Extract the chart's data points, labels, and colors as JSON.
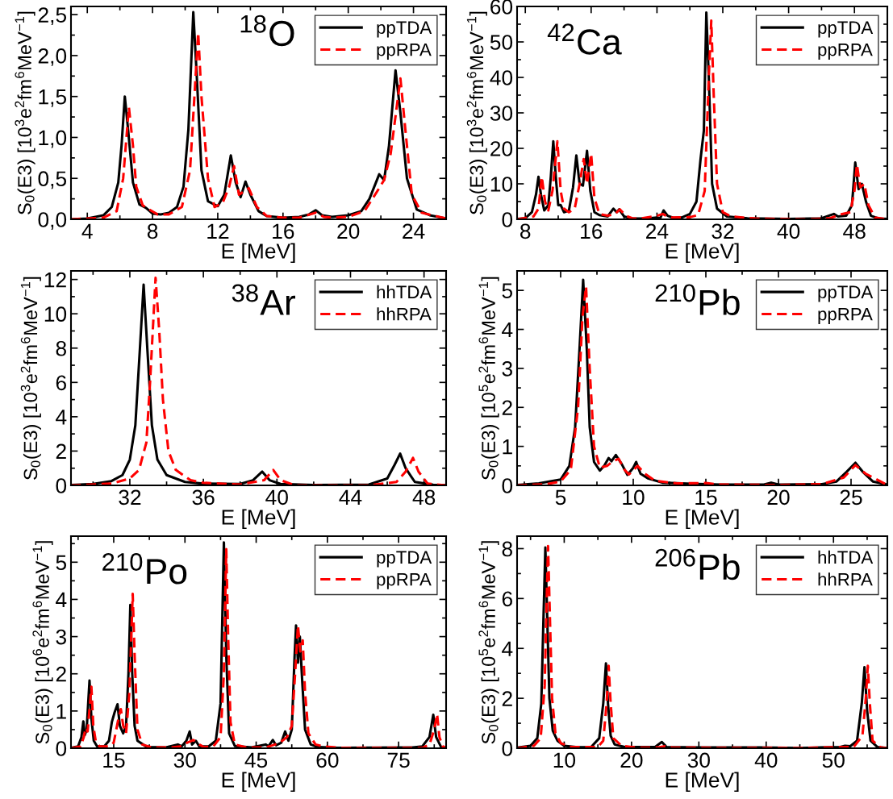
{
  "chart_data": [
    {
      "type": "line",
      "xlabel": "E [MeV]",
      "ylabel": "S$_{0}$(E3) [10$^{3}$e$^{2}$fm$^{6}$MeV$^{−1}$]",
      "annotations": [
        "$^{18}$O"
      ],
      "legend": "top right",
      "xlim": [
        3,
        26
      ],
      "ylim": [
        0,
        2.6
      ],
      "xticks": [
        4,
        8,
        12,
        16,
        20,
        24
      ],
      "yticks": [
        {
          "value": 0,
          "label": "0,0"
        },
        {
          "value": 0.5,
          "label": "0,5"
        },
        {
          "value": 1.0,
          "label": "1,0"
        },
        {
          "value": 1.5,
          "label": "1,5"
        },
        {
          "value": 2.0,
          "label": "2,0"
        },
        {
          "value": 2.5,
          "label": "2,5"
        }
      ],
      "series": [
        {
          "name": "ppTDA",
          "color": "#000000",
          "line_style": "solid",
          "x": [
            3,
            4,
            5,
            5.5,
            5.9,
            6.1,
            6.3,
            6.5,
            6.8,
            7.2,
            7.6,
            8,
            8.5,
            9,
            9.5,
            9.9,
            10.2,
            10.5,
            10.7,
            11.0,
            11.4,
            12.0,
            12.4,
            12.8,
            13.1,
            13.4,
            13.7,
            14.0,
            14.5,
            15,
            16,
            17,
            17.6,
            18.0,
            18.4,
            19,
            20,
            20.8,
            21.3,
            21.9,
            22.2,
            22.5,
            22.9,
            23.2,
            23.6,
            24.2,
            25,
            26
          ],
          "values": [
            0.0,
            0.01,
            0.05,
            0.15,
            0.45,
            0.9,
            1.5,
            1.1,
            0.45,
            0.18,
            0.14,
            0.07,
            0.06,
            0.08,
            0.15,
            0.4,
            1.1,
            2.53,
            1.8,
            0.6,
            0.22,
            0.16,
            0.3,
            0.78,
            0.45,
            0.27,
            0.46,
            0.3,
            0.1,
            0.04,
            0.02,
            0.03,
            0.06,
            0.11,
            0.05,
            0.03,
            0.05,
            0.1,
            0.25,
            0.55,
            0.48,
            0.9,
            1.82,
            1.3,
            0.5,
            0.12,
            0.05,
            0.01
          ]
        },
        {
          "name": "ppRPA",
          "color": "#ff0000",
          "line_style": "dashed",
          "x": [
            3,
            5,
            5.8,
            6.2,
            6.55,
            6.8,
            7.0,
            7.4,
            7.8,
            8.3,
            9,
            9.8,
            10.3,
            10.8,
            11.0,
            11.4,
            11.8,
            12.3,
            12.7,
            13.0,
            13.3,
            13.9,
            14.4,
            15,
            16,
            17,
            18.0,
            18.5,
            19,
            20,
            21,
            21.8,
            22.2,
            22.6,
            23.2,
            23.5,
            23.9,
            24.5,
            26
          ],
          "values": [
            0.0,
            0.02,
            0.1,
            0.5,
            1.37,
            0.9,
            0.4,
            0.17,
            0.12,
            0.06,
            0.06,
            0.15,
            0.6,
            2.28,
            1.5,
            0.5,
            0.15,
            0.2,
            0.4,
            0.65,
            0.3,
            0.38,
            0.15,
            0.04,
            0.02,
            0.02,
            0.08,
            0.03,
            0.02,
            0.03,
            0.1,
            0.35,
            0.48,
            0.8,
            1.72,
            1.1,
            0.3,
            0.08,
            0.01
          ]
        }
      ]
    },
    {
      "type": "line",
      "xlabel": "E [MeV]",
      "ylabel": "S$_{0}$(E3) [10$^{3}$e$^{2}$fm$^{6}$MeV$^{−1}$]",
      "annotations": [
        "$^{42}$Ca"
      ],
      "legend": "top right",
      "xlim": [
        7,
        52
      ],
      "ylim": [
        0,
        60
      ],
      "xticks": [
        8,
        16,
        24,
        32,
        40,
        48
      ],
      "yticks": [
        0,
        10,
        20,
        30,
        40,
        50,
        60
      ],
      "series": [
        {
          "name": "ppTDA",
          "color": "#000000",
          "line_style": "solid",
          "x": [
            7,
            8,
            8.8,
            9.3,
            9.6,
            9.9,
            10.3,
            10.8,
            11.1,
            11.4,
            11.7,
            12.0,
            12.3,
            12.7,
            13.3,
            13.8,
            14.2,
            14.6,
            15.0,
            15.5,
            15.9,
            16.4,
            17,
            18,
            18.7,
            19.1,
            19.4,
            20,
            21,
            23,
            24,
            24.4,
            24.8,
            25.3,
            26,
            27,
            28,
            28.8,
            29.3,
            29.7,
            30.0,
            30.3,
            30.7,
            31.3,
            32.5,
            35,
            40,
            44,
            45.5,
            46,
            47,
            47.7,
            48.1,
            48.5,
            48.9,
            49.4,
            50,
            51,
            52
          ],
          "values": [
            0.1,
            0.3,
            2,
            7,
            12,
            7,
            2.5,
            4,
            12,
            22,
            12,
            4,
            4,
            2,
            2.5,
            9,
            18,
            10,
            9.5,
            19.3,
            8,
            2,
            1.2,
            0.8,
            3,
            2,
            2.8,
            0.8,
            0.2,
            0.3,
            0.5,
            0.3,
            2.5,
            1,
            0.4,
            0.5,
            1.5,
            5,
            17,
            25,
            58.3,
            40,
            10,
            3,
            0.8,
            0.3,
            0.1,
            0.3,
            1.5,
            0.8,
            1,
            4,
            16,
            8.5,
            10,
            5,
            1,
            0.2,
            0.1
          ]
        },
        {
          "name": "ppRPA",
          "color": "#ff0000",
          "line_style": "dashed",
          "x": [
            7,
            9,
            9.6,
            10.0,
            10.4,
            10.8,
            11.3,
            11.9,
            12.3,
            12.7,
            13.3,
            14.0,
            14.6,
            15.1,
            15.5,
            16.0,
            16.4,
            17,
            18,
            18.9,
            19.5,
            20.2,
            21,
            22,
            24.0,
            24.7,
            25.5,
            28,
            29,
            29.8,
            30.3,
            30.6,
            30.9,
            31.3,
            32,
            33,
            36,
            42,
            45,
            46.5,
            47.5,
            48.0,
            48.3,
            48.7,
            49.2,
            49.7,
            50.5,
            52
          ],
          "values": [
            0,
            0.8,
            3,
            12,
            5,
            2.5,
            8,
            22,
            8,
            3,
            2,
            3,
            10,
            17,
            10,
            18.5,
            6,
            1.5,
            1,
            1.5,
            2.8,
            1,
            0.3,
            0.2,
            1,
            1.5,
            0.5,
            0.6,
            1.2,
            8,
            40,
            56,
            35,
            10,
            2,
            0.8,
            0.2,
            0,
            0.3,
            1.5,
            2,
            8,
            15.5,
            9,
            10,
            4,
            0.5,
            0
          ]
        }
      ]
    },
    {
      "type": "line",
      "xlabel": "E [MeV]",
      "ylabel": "S$_{0}$(E3) [10$^{3}$e$^{2}$fm$^{6}$MeV$^{−1}$]",
      "annotations": [
        "$^{38}$Ar"
      ],
      "legend": "top right",
      "xlim": [
        28.8,
        49.2
      ],
      "ylim": [
        0,
        12.5
      ],
      "xticks": [
        32,
        36,
        40,
        44,
        48
      ],
      "yticks": [
        0,
        2,
        4,
        6,
        8,
        10,
        12
      ],
      "series": [
        {
          "name": "hhTDA",
          "color": "#000000",
          "line_style": "solid",
          "x": [
            28.8,
            30,
            31,
            31.6,
            32.0,
            32.3,
            32.55,
            32.75,
            32.95,
            33.2,
            33.5,
            34,
            35,
            36,
            38,
            38.7,
            39.2,
            39.6,
            40.2,
            42,
            45,
            46.0,
            46.4,
            46.7,
            47.0,
            47.5,
            48.5,
            49.2
          ],
          "values": [
            0.02,
            0.08,
            0.25,
            0.6,
            1.5,
            3.5,
            8,
            11.7,
            8,
            3.5,
            1.5,
            0.6,
            0.2,
            0.1,
            0.08,
            0.3,
            0.8,
            0.3,
            0.08,
            0.02,
            0.05,
            0.4,
            1.2,
            1.85,
            1.0,
            0.2,
            0.03,
            0.01
          ]
        },
        {
          "name": "hhRPA",
          "color": "#ff0000",
          "line_style": "dashed",
          "x": [
            28.8,
            31,
            32,
            32.5,
            32.9,
            33.1,
            33.4,
            33.6,
            33.8,
            34.1,
            34.5,
            35.3,
            36,
            38,
            39.3,
            39.8,
            40.2,
            41,
            45,
            46.5,
            47.0,
            47.4,
            47.7,
            48.2,
            49.2
          ],
          "values": [
            0,
            0.1,
            0.4,
            0.9,
            2.5,
            6,
            12.1,
            9,
            5,
            2,
            0.9,
            0.3,
            0.15,
            0.05,
            0.3,
            0.9,
            0.3,
            0,
            0,
            0.2,
            0.8,
            1.6,
            0.8,
            0.1,
            0
          ]
        }
      ]
    },
    {
      "type": "line",
      "xlabel": "E [MeV]",
      "ylabel": "S$_{0}$(E3) [10$^{5}$e$^{2}$fm$^{6}$MeV$^{−1}$]",
      "annotations": [
        "$^{210}$Pb"
      ],
      "legend": "top right",
      "xlim": [
        2,
        27.5
      ],
      "ylim": [
        0,
        5.5
      ],
      "xticks": [
        5,
        10,
        15,
        20,
        25
      ],
      "yticks": [
        0,
        1,
        2,
        3,
        4,
        5
      ],
      "series": [
        {
          "name": "ppTDA",
          "color": "#000000",
          "line_style": "solid",
          "x": [
            2,
            3.5,
            5,
            5.6,
            6.0,
            6.3,
            6.55,
            6.8,
            7.0,
            7.3,
            7.7,
            8.0,
            8.3,
            8.5,
            8.8,
            9.2,
            9.6,
            10.0,
            10.2,
            10.5,
            11,
            12,
            14,
            16,
            19,
            19.5,
            20,
            23,
            24,
            24.7,
            25.3,
            25.8,
            26.5,
            27.5
          ],
          "values": [
            0.01,
            0.05,
            0.15,
            0.5,
            1.5,
            3.5,
            5.27,
            3.5,
            1.5,
            0.6,
            0.38,
            0.5,
            0.7,
            0.62,
            0.78,
            0.55,
            0.27,
            0.45,
            0.6,
            0.3,
            0.18,
            0.07,
            0.04,
            0.02,
            0.02,
            0.07,
            0.02,
            0.03,
            0.1,
            0.35,
            0.58,
            0.35,
            0.1,
            0.02
          ]
        },
        {
          "name": "ppRPA",
          "color": "#ff0000",
          "line_style": "dashed",
          "x": [
            2,
            4,
            5,
            5.7,
            6.2,
            6.5,
            6.75,
            7.0,
            7.3,
            7.7,
            8.2,
            8.6,
            9.0,
            9.4,
            9.7,
            10.3,
            10.8,
            11.5,
            13,
            15,
            16,
            20,
            23,
            24.5,
            25.3,
            26,
            27.5
          ],
          "values": [
            0,
            0.03,
            0.1,
            0.4,
            2,
            4.3,
            5.1,
            3,
            1,
            0.45,
            0.5,
            0.62,
            0.68,
            0.4,
            0.28,
            0.5,
            0.3,
            0.12,
            0.05,
            0.06,
            0.02,
            0.01,
            0.03,
            0.2,
            0.52,
            0.3,
            0.01
          ]
        }
      ]
    },
    {
      "type": "line",
      "xlabel": "E [MeV]",
      "ylabel": "S$_{0}$(E3) [10$^{6}$e$^{2}$fm$^{6}$MeV$^{−1}$]",
      "annotations": [
        "$^{210}$Po"
      ],
      "legend": "top right",
      "xlim": [
        6,
        85
      ],
      "ylim": [
        0,
        5.7
      ],
      "xticks": [
        15,
        30,
        45,
        60,
        75
      ],
      "yticks": [
        0,
        1,
        2,
        3,
        4,
        5
      ],
      "series": [
        {
          "name": "ppTDA",
          "color": "#000000",
          "line_style": "solid",
          "x": [
            6,
            7.5,
            8.2,
            8.6,
            8.9,
            9.3,
            9.9,
            10.3,
            10.8,
            11.5,
            13,
            14,
            14.6,
            15.2,
            15.8,
            16.3,
            17,
            17.6,
            18.1,
            18.5,
            18.9,
            19.4,
            20,
            22,
            26,
            28.5,
            29.3,
            30.3,
            31.0,
            31.5,
            32.3,
            33,
            35,
            36.5,
            37.5,
            38.2,
            38.7,
            39.3,
            40.5,
            44,
            47,
            47.6,
            48.5,
            49.2,
            50.3,
            51.1,
            51.8,
            52.5,
            53.1,
            53.4,
            53.8,
            54.2,
            54.7,
            55.3,
            56.5,
            58,
            62,
            78,
            80,
            81.5,
            82.3,
            82.9,
            84,
            85
          ],
          "values": [
            0.01,
            0.05,
            0.3,
            0.72,
            0.35,
            0.5,
            1.82,
            0.8,
            0.2,
            0.05,
            0.05,
            0.2,
            0.7,
            0.97,
            1.18,
            0.6,
            0.4,
            0.6,
            2,
            3.85,
            2,
            0.6,
            0.2,
            0.03,
            0.02,
            0.1,
            0.05,
            0.2,
            0.45,
            0.1,
            0.2,
            0.05,
            0.05,
            0.2,
            1.2,
            5.53,
            2.5,
            0.4,
            0.06,
            0.02,
            0.1,
            0.05,
            0.22,
            0.08,
            0.15,
            0.45,
            0.2,
            0.5,
            2.5,
            3.3,
            2.3,
            3.0,
            1.8,
            0.5,
            0.1,
            0.03,
            0.01,
            0.02,
            0.05,
            0.3,
            0.9,
            0.3,
            0.02,
            0.01
          ]
        },
        {
          "name": "ppRPA",
          "color": "#ff0000",
          "line_style": "dashed",
          "x": [
            6,
            8,
            8.7,
            9.1,
            9.5,
            10.3,
            10.7,
            11.2,
            12,
            14,
            15,
            16,
            16.5,
            17,
            17.6,
            18.3,
            19.0,
            19.4,
            20,
            21,
            23,
            27,
            29,
            30.5,
            31.8,
            33,
            34,
            36,
            37.5,
            38.2,
            38.7,
            39.1,
            39.6,
            40.5,
            43,
            47,
            49,
            50.5,
            51.5,
            52.5,
            53.2,
            53.8,
            54.3,
            54.8,
            55.3,
            56,
            57.5,
            59,
            63,
            80,
            81.5,
            82.5,
            83.1,
            83.6,
            84.3,
            85
          ],
          "values": [
            0,
            0.05,
            0.3,
            0.55,
            0.45,
            1.65,
            0.6,
            0.2,
            0.05,
            0.05,
            0.15,
            0.8,
            1.05,
            0.6,
            0.4,
            1.5,
            4.15,
            2.5,
            0.5,
            0.1,
            0.02,
            0.02,
            0.05,
            0.15,
            0.22,
            0.1,
            0.03,
            0.05,
            0.3,
            2,
            5.35,
            3,
            0.7,
            0.1,
            0.02,
            0.02,
            0.1,
            0.2,
            0.3,
            0.6,
            2,
            3.3,
            2.6,
            2.9,
            1.5,
            0.4,
            0.1,
            0.05,
            0.01,
            0.01,
            0.1,
            0.5,
            0.92,
            0.3,
            0.05,
            0.01
          ]
        }
      ]
    },
    {
      "type": "line",
      "xlabel": "E [MeV]",
      "ylabel": "S$_{0}$(E3) [10$^{5}$e$^{2}$fm$^{6}$MeV$^{−1}$]",
      "annotations": [
        "$^{206}$Pb"
      ],
      "legend": "top right",
      "xlim": [
        3,
        58
      ],
      "ylim": [
        0,
        8.5
      ],
      "xticks": [
        10,
        20,
        30,
        40,
        50
      ],
      "yticks": [
        0,
        2,
        4,
        6,
        8
      ],
      "series": [
        {
          "name": "hhTDA",
          "color": "#000000",
          "line_style": "solid",
          "x": [
            3,
            5,
            6,
            6.6,
            6.9,
            7.2,
            7.5,
            7.8,
            8.3,
            9,
            10,
            12,
            14,
            15.2,
            15.8,
            16.2,
            16.5,
            16.9,
            17.5,
            19,
            23.5,
            24.5,
            25.2,
            30,
            39,
            45,
            51,
            51.7,
            52.5,
            53.5,
            54.2,
            54.6,
            55.0,
            55.5,
            56.5,
            58
          ],
          "values": [
            0.02,
            0.1,
            0.4,
            1.8,
            5,
            8.05,
            5,
            2,
            0.7,
            0.3,
            0.1,
            0.04,
            0.05,
            0.4,
            1.8,
            3.4,
            1.8,
            0.5,
            0.15,
            0.05,
            0.05,
            0.25,
            0.05,
            0.03,
            0.03,
            0.01,
            0.05,
            0.1,
            0.08,
            0.3,
            1.8,
            3.25,
            1.5,
            0.3,
            0.05,
            0.01
          ]
        },
        {
          "name": "hhRPA",
          "color": "#ff0000",
          "line_style": "dashed",
          "x": [
            3,
            5.5,
            6.5,
            7.1,
            7.4,
            7.6,
            7.9,
            8.2,
            8.7,
            9.5,
            11,
            15,
            15.8,
            16.3,
            16.6,
            16.9,
            17.3,
            18.5,
            21,
            24,
            25,
            26,
            30,
            45,
            53,
            54.3,
            54.8,
            55.1,
            55.4,
            55.8,
            57,
            58
          ],
          "values": [
            0,
            0.1,
            0.4,
            2.5,
            6,
            8.1,
            5,
            2,
            0.6,
            0.2,
            0.05,
            0.05,
            0.3,
            1.8,
            3.3,
            1.8,
            0.4,
            0.1,
            0.02,
            0.03,
            0.08,
            0.03,
            0.02,
            0.01,
            0.05,
            0.5,
            2,
            3.3,
            1.8,
            0.3,
            0.03,
            0
          ]
        }
      ]
    }
  ]
}
